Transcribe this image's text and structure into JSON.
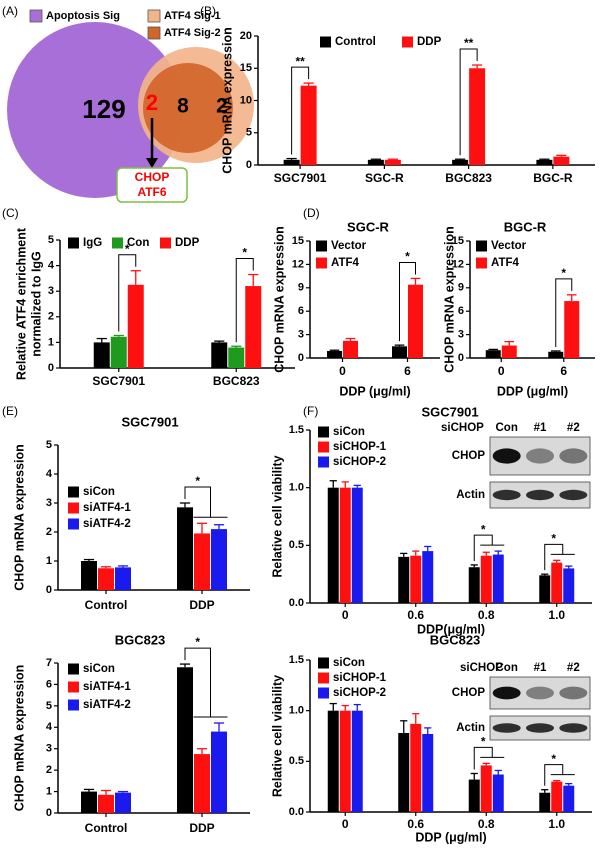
{
  "chart_data": [
    {
      "type": "venn",
      "panel": "(A)",
      "sets": [
        {
          "name": "Apoptosis Sig",
          "color": "#a86fd8"
        },
        {
          "name": "ATF4 Sig-1",
          "color": "#f2b48a"
        },
        {
          "name": "ATF4 Sig-2",
          "color": "#d2652a"
        }
      ],
      "regions": [
        {
          "value": 129,
          "color": "#000000"
        },
        {
          "value": 2,
          "color": "#ff0000"
        },
        {
          "value": 8,
          "color": "#000000"
        },
        {
          "value": 2,
          "color": "#000000"
        }
      ],
      "callout": {
        "lines": [
          "CHOP",
          "ATF6"
        ],
        "color": "#ff0000",
        "border": "#7bc043"
      }
    },
    {
      "type": "bar",
      "panel": "(B)",
      "ylabel": "CHOP mRNA expression",
      "categories": [
        "SGC7901",
        "SGC-R",
        "BGC823",
        "BGC-R"
      ],
      "series": [
        {
          "name": "Control",
          "color": "#000000",
          "values": [
            0.8,
            0.8,
            0.8,
            0.8
          ],
          "errors": [
            0.2,
            0.1,
            0.1,
            0.1
          ]
        },
        {
          "name": "DDP",
          "color": "#ff1010",
          "values": [
            12.3,
            0.8,
            15.0,
            1.3
          ],
          "errors": [
            0.4,
            0.1,
            0.5,
            0.2
          ]
        }
      ],
      "ylim": [
        0,
        20
      ],
      "yticks": [
        0,
        5,
        10,
        15,
        20
      ],
      "significance": [
        {
          "category": "SGC7901",
          "between": [
            "Control",
            "DDP"
          ],
          "label": "**"
        },
        {
          "category": "BGC823",
          "between": [
            "Control",
            "DDP"
          ],
          "label": "**"
        }
      ]
    },
    {
      "type": "bar",
      "panel": "(C)",
      "ylabel": [
        "Relative ATF4 enrichment",
        "normalized to IgG"
      ],
      "categories": [
        "SGC7901",
        "BGC823"
      ],
      "series": [
        {
          "name": "IgG",
          "color": "#000000",
          "values": [
            1.0,
            1.0
          ],
          "errors": [
            0.15,
            0.05
          ]
        },
        {
          "name": "Con",
          "color": "#1f9a1f",
          "values": [
            1.22,
            0.8
          ],
          "errors": [
            0.05,
            0.05
          ]
        },
        {
          "name": "DDP",
          "color": "#ff1010",
          "values": [
            3.25,
            3.2
          ],
          "errors": [
            0.55,
            0.45
          ]
        }
      ],
      "ylim": [
        0,
        5
      ],
      "yticks": [
        0,
        1,
        2,
        3,
        4,
        5
      ],
      "significance": [
        {
          "category": "SGC7901",
          "between": [
            "Con",
            "DDP"
          ],
          "label": "*"
        },
        {
          "category": "BGC823",
          "between": [
            "Con",
            "DDP"
          ],
          "label": "*"
        }
      ]
    },
    {
      "type": "bar",
      "panel": "(D)",
      "title": "SGC-R",
      "ylabel": "CHOP mRNA expression",
      "xlabel": "DDP (μg/ml)",
      "categories": [
        "0",
        "6"
      ],
      "series": [
        {
          "name": "Vector",
          "color": "#000000",
          "values": [
            0.9,
            1.5
          ],
          "errors": [
            0.1,
            0.15
          ]
        },
        {
          "name": "ATF4",
          "color": "#ff1010",
          "values": [
            2.2,
            9.4
          ],
          "errors": [
            0.3,
            0.8
          ]
        }
      ],
      "ylim": [
        0,
        15
      ],
      "yticks": [
        0,
        3,
        6,
        9,
        12,
        15
      ],
      "significance": [
        {
          "category": "6",
          "between": [
            "Vector",
            "ATF4"
          ],
          "label": "*"
        }
      ]
    },
    {
      "type": "bar",
      "title": "BGC-R",
      "ylabel": "CHOP mRNA expression",
      "xlabel": "DDP (μg/ml)",
      "categories": [
        "0",
        "6"
      ],
      "series": [
        {
          "name": "Vector",
          "color": "#000000",
          "values": [
            1.0,
            0.8
          ],
          "errors": [
            0.1,
            0.1
          ]
        },
        {
          "name": "ATF4",
          "color": "#ff1010",
          "values": [
            1.6,
            7.3
          ],
          "errors": [
            0.5,
            0.8
          ]
        }
      ],
      "ylim": [
        0,
        15
      ],
      "yticks": [
        0,
        3,
        6,
        9,
        12,
        15
      ],
      "significance": [
        {
          "category": "6",
          "between": [
            "Vector",
            "ATF4"
          ],
          "label": "*"
        }
      ]
    },
    {
      "type": "bar",
      "panel": "(E)",
      "title": "SGC7901",
      "ylabel": "CHOP mRNA expression",
      "categories": [
        "Control",
        "DDP"
      ],
      "series": [
        {
          "name": "siCon",
          "color": "#000000",
          "values": [
            1.0,
            2.85
          ],
          "errors": [
            0.05,
            0.15
          ]
        },
        {
          "name": "siATF4-1",
          "color": "#ff1010",
          "values": [
            0.75,
            1.95
          ],
          "errors": [
            0.05,
            0.35
          ]
        },
        {
          "name": "siATF4-2",
          "color": "#1a1aee",
          "values": [
            0.78,
            2.1
          ],
          "errors": [
            0.05,
            0.15
          ]
        }
      ],
      "ylim": [
        0,
        5
      ],
      "yticks": [
        0,
        1,
        2,
        3,
        4,
        5
      ],
      "significance": [
        {
          "category": "DDP",
          "between": [
            "siCon",
            "siATF4-1",
            "siATF4-2"
          ],
          "label": "*"
        }
      ]
    },
    {
      "type": "bar",
      "title": "BGC823",
      "ylabel": "CHOP mRNA expression",
      "categories": [
        "Control",
        "DDP"
      ],
      "series": [
        {
          "name": "siCon",
          "color": "#000000",
          "values": [
            1.0,
            6.8
          ],
          "errors": [
            0.1,
            0.15
          ]
        },
        {
          "name": "siATF4-1",
          "color": "#ff1010",
          "values": [
            0.85,
            2.75
          ],
          "errors": [
            0.2,
            0.25
          ]
        },
        {
          "name": "siATF4-2",
          "color": "#1a1aee",
          "values": [
            0.95,
            3.8
          ],
          "errors": [
            0.05,
            0.4
          ]
        }
      ],
      "ylim": [
        0,
        7
      ],
      "yticks": [
        0,
        1,
        2,
        3,
        4,
        5,
        6,
        7
      ],
      "significance": [
        {
          "category": "DDP",
          "between": [
            "siCon",
            "siATF4-1",
            "siATF4-2"
          ],
          "label": "*"
        }
      ]
    },
    {
      "type": "bar",
      "panel": "(F)",
      "title": "SGC7901",
      "ylabel": "Relative cell viability",
      "xlabel": "DDP(μg/ml)",
      "categories": [
        "0",
        "0.6",
        "0.8",
        "1.0"
      ],
      "series": [
        {
          "name": "siCon",
          "color": "#000000",
          "values": [
            1.0,
            0.4,
            0.31,
            0.24
          ],
          "errors": [
            0.06,
            0.03,
            0.02,
            0.01
          ]
        },
        {
          "name": "siCHOP-1",
          "color": "#ff1010",
          "values": [
            1.0,
            0.41,
            0.41,
            0.35
          ],
          "errors": [
            0.05,
            0.04,
            0.03,
            0.02
          ]
        },
        {
          "name": "siCHOP-2",
          "color": "#1a1aee",
          "values": [
            1.0,
            0.45,
            0.42,
            0.3
          ],
          "errors": [
            0.02,
            0.04,
            0.03,
            0.02
          ]
        }
      ],
      "ylim": [
        0,
        1.5
      ],
      "yticks": [
        {
          "value": 0,
          "label": "0.0"
        },
        {
          "value": 0.5,
          "label": "0.5"
        },
        {
          "value": 1,
          "label": "1.0"
        },
        {
          "value": 1.5,
          "label": "1.5"
        }
      ],
      "significance": [
        {
          "category": "0.8",
          "between": [
            "siCon",
            "siCHOP-1",
            "siCHOP-2"
          ],
          "label": "*"
        },
        {
          "category": "1.0",
          "between": [
            "siCon",
            "siCHOP-1",
            "siCHOP-2"
          ],
          "label": "*"
        }
      ],
      "blot": {
        "header": "siCHOP",
        "lanes": [
          "Con",
          "#1",
          "#2"
        ],
        "rows": [
          "CHOP",
          "Actin"
        ]
      }
    },
    {
      "type": "bar",
      "title": "BGC823",
      "ylabel": "Relative cell viability",
      "xlabel": "DDP (μg/ml)",
      "categories": [
        "0",
        "0.6",
        "0.8",
        "1.0"
      ],
      "series": [
        {
          "name": "siCon",
          "color": "#000000",
          "values": [
            1.0,
            0.78,
            0.32,
            0.19
          ],
          "errors": [
            0.07,
            0.12,
            0.06,
            0.03
          ]
        },
        {
          "name": "siCHOP-1",
          "color": "#ff1010",
          "values": [
            1.0,
            0.87,
            0.46,
            0.3
          ],
          "errors": [
            0.05,
            0.1,
            0.02,
            0.01
          ]
        },
        {
          "name": "siCHOP-2",
          "color": "#1a1aee",
          "values": [
            1.0,
            0.77,
            0.37,
            0.26
          ],
          "errors": [
            0.06,
            0.06,
            0.04,
            0.02
          ]
        }
      ],
      "ylim": [
        0,
        1.5
      ],
      "yticks": [
        {
          "value": 0,
          "label": "0.0"
        },
        {
          "value": 0.5,
          "label": "0.5"
        },
        {
          "value": 1,
          "label": "1.0"
        },
        {
          "value": 1.5,
          "label": "1.5"
        }
      ],
      "significance": [
        {
          "category": "0.8",
          "between": [
            "siCon",
            "siCHOP-1",
            "siCHOP-2"
          ],
          "label": "*"
        },
        {
          "category": "1.0",
          "between": [
            "siCon",
            "siCHOP-1",
            "siCHOP-2"
          ],
          "label": "*"
        }
      ],
      "blot": {
        "header": "siCHOP",
        "lanes": [
          "Con",
          "#1",
          "#2"
        ],
        "rows": [
          "CHOP",
          "Actin"
        ]
      }
    }
  ]
}
